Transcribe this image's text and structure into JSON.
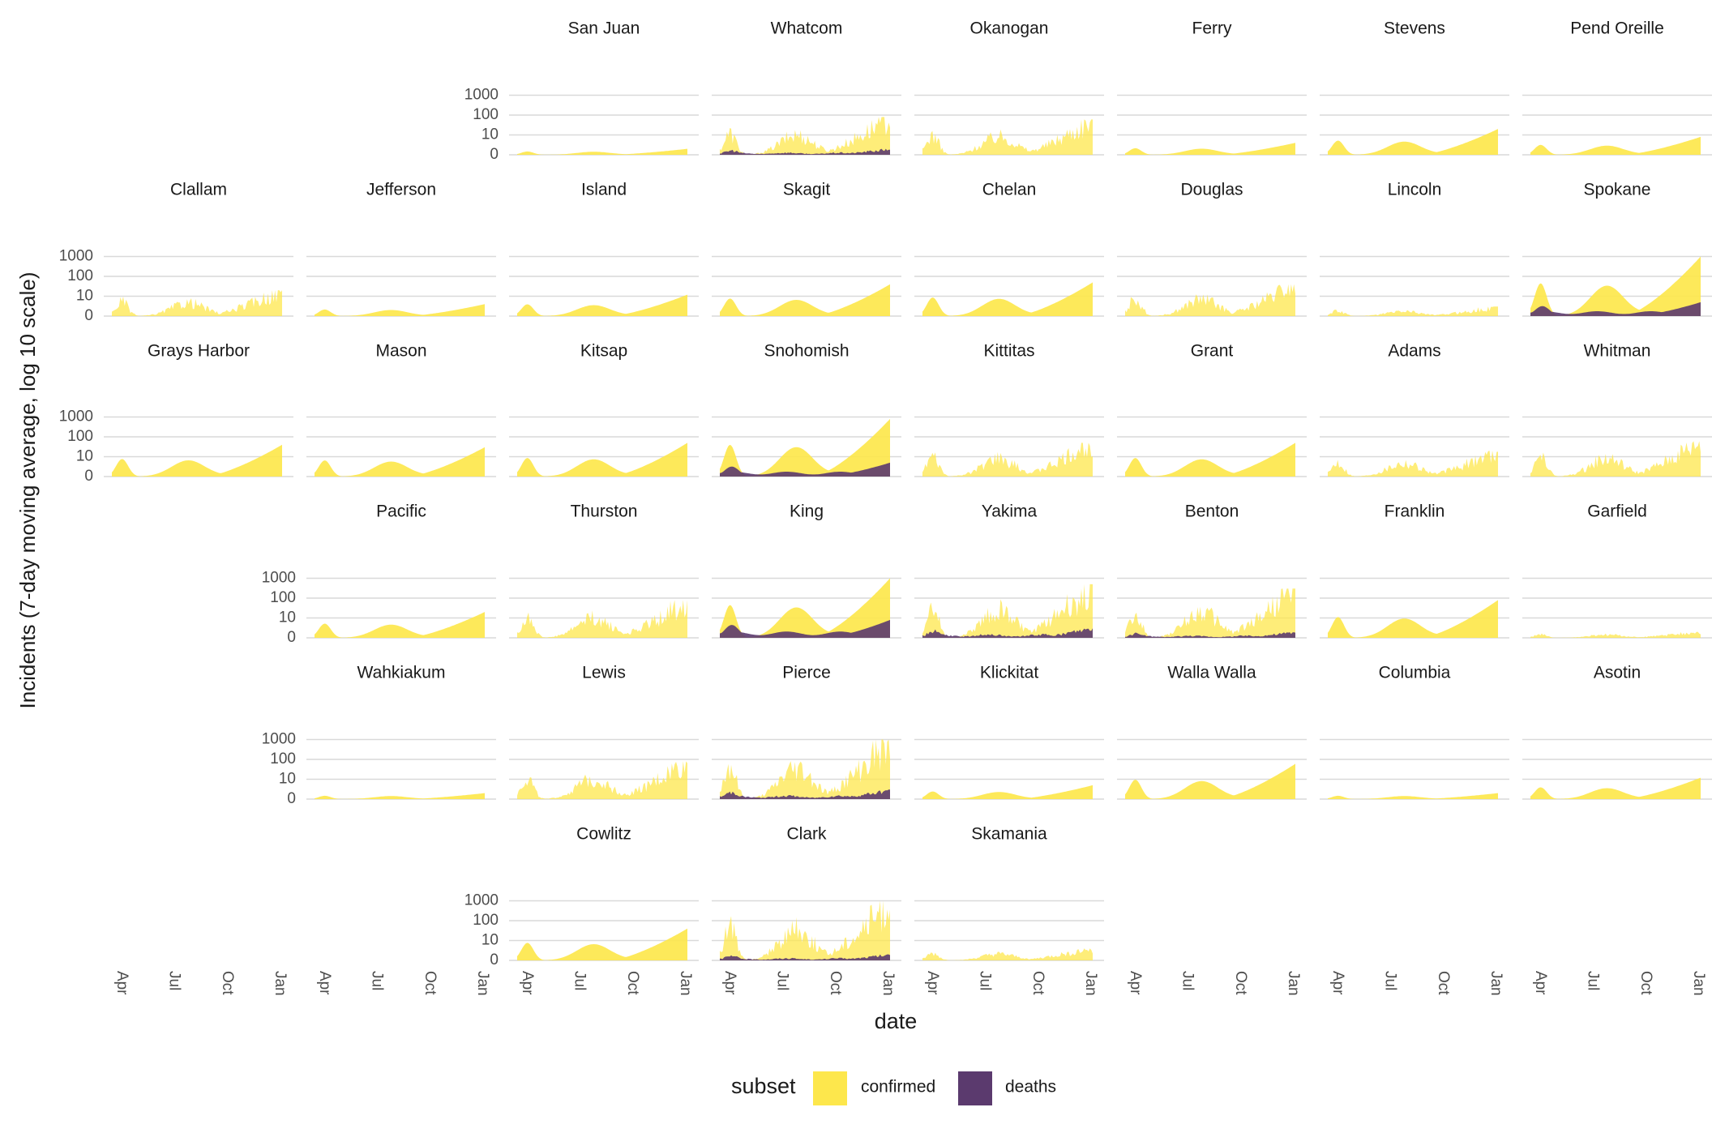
{
  "chart_data": {
    "type": "area",
    "facet_type": "small-multiples-geographic",
    "ylabel": "Incidents (7-day moving average, log 10 scale)",
    "xlabel": "date",
    "y_scale": "log10",
    "y_ticks": [
      "0",
      "10",
      "100",
      "1000"
    ],
    "x_ticks": [
      "Apr",
      "Jul",
      "Oct",
      "Jan"
    ],
    "x_range": [
      "2020-03-15",
      "2021-01-05"
    ],
    "legend": {
      "title": "subset",
      "position": "bottom",
      "entries": [
        {
          "label": "confirmed",
          "color": "#FDE74C"
        },
        {
          "label": "deaths",
          "color": "#5B3A6E"
        }
      ]
    },
    "colors": {
      "confirmed": "#FDE74C",
      "deaths": "#5B3A6E",
      "grid": "#d9d9d9"
    },
    "panels": [
      {
        "county": "San Juan",
        "row": 0,
        "col": 2,
        "confirmed_peak": 2,
        "deaths_peak": 0,
        "style": "smooth"
      },
      {
        "county": "Whatcom",
        "row": 0,
        "col": 3,
        "confirmed_peak": 80,
        "deaths_peak": 2,
        "style": "noisy"
      },
      {
        "county": "Okanogan",
        "row": 0,
        "col": 4,
        "confirmed_peak": 60,
        "deaths_peak": 1,
        "style": "noisy"
      },
      {
        "county": "Ferry",
        "row": 0,
        "col": 5,
        "confirmed_peak": 4,
        "deaths_peak": 0,
        "style": "smooth"
      },
      {
        "county": "Stevens",
        "row": 0,
        "col": 6,
        "confirmed_peak": 20,
        "deaths_peak": 1,
        "style": "smooth"
      },
      {
        "county": "Pend Oreille",
        "row": 0,
        "col": 7,
        "confirmed_peak": 8,
        "deaths_peak": 0,
        "style": "smooth"
      },
      {
        "county": "Clallam",
        "row": 1,
        "col": 0,
        "confirmed_peak": 20,
        "deaths_peak": 0,
        "style": "noisy"
      },
      {
        "county": "Jefferson",
        "row": 1,
        "col": 1,
        "confirmed_peak": 4,
        "deaths_peak": 0,
        "style": "smooth"
      },
      {
        "county": "Island",
        "row": 1,
        "col": 2,
        "confirmed_peak": 12,
        "deaths_peak": 1,
        "style": "smooth"
      },
      {
        "county": "Skagit",
        "row": 1,
        "col": 3,
        "confirmed_peak": 40,
        "deaths_peak": 1,
        "style": "smooth"
      },
      {
        "county": "Chelan",
        "row": 1,
        "col": 4,
        "confirmed_peak": 50,
        "deaths_peak": 1,
        "style": "smooth"
      },
      {
        "county": "Douglas",
        "row": 1,
        "col": 5,
        "confirmed_peak": 40,
        "deaths_peak": 0,
        "style": "noisy"
      },
      {
        "county": "Lincoln",
        "row": 1,
        "col": 6,
        "confirmed_peak": 3,
        "deaths_peak": 0,
        "style": "noisy"
      },
      {
        "county": "Spokane",
        "row": 1,
        "col": 7,
        "confirmed_peak": 1000,
        "deaths_peak": 5,
        "style": "smooth"
      },
      {
        "county": "Grays Harbor",
        "row": 2,
        "col": 0,
        "confirmed_peak": 40,
        "deaths_peak": 1,
        "style": "smooth"
      },
      {
        "county": "Mason",
        "row": 2,
        "col": 1,
        "confirmed_peak": 30,
        "deaths_peak": 0,
        "style": "smooth"
      },
      {
        "county": "Kitsap",
        "row": 2,
        "col": 2,
        "confirmed_peak": 50,
        "deaths_peak": 0,
        "style": "smooth"
      },
      {
        "county": "Snohomish",
        "row": 2,
        "col": 3,
        "confirmed_peak": 800,
        "deaths_peak": 5,
        "style": "smooth"
      },
      {
        "county": "Kittitas",
        "row": 2,
        "col": 4,
        "confirmed_peak": 50,
        "deaths_peak": 0,
        "style": "noisy"
      },
      {
        "county": "Grant",
        "row": 2,
        "col": 5,
        "confirmed_peak": 50,
        "deaths_peak": 1,
        "style": "smooth"
      },
      {
        "county": "Adams",
        "row": 2,
        "col": 6,
        "confirmed_peak": 20,
        "deaths_peak": 0,
        "style": "noisy"
      },
      {
        "county": "Whitman",
        "row": 2,
        "col": 7,
        "confirmed_peak": 60,
        "deaths_peak": 1,
        "style": "noisy"
      },
      {
        "county": "Pacific",
        "row": 3,
        "col": 1,
        "confirmed_peak": 20,
        "deaths_peak": 0,
        "style": "smooth"
      },
      {
        "county": "Thurston",
        "row": 3,
        "col": 2,
        "confirmed_peak": 80,
        "deaths_peak": 1,
        "style": "noisy"
      },
      {
        "county": "King",
        "row": 3,
        "col": 3,
        "confirmed_peak": 1000,
        "deaths_peak": 8,
        "style": "smooth"
      },
      {
        "county": "Yakima",
        "row": 3,
        "col": 4,
        "confirmed_peak": 500,
        "deaths_peak": 3,
        "style": "noisy"
      },
      {
        "county": "Benton",
        "row": 3,
        "col": 5,
        "confirmed_peak": 300,
        "deaths_peak": 2,
        "style": "noisy"
      },
      {
        "county": "Franklin",
        "row": 3,
        "col": 6,
        "confirmed_peak": 80,
        "deaths_peak": 1,
        "style": "smooth"
      },
      {
        "county": "Garfield",
        "row": 3,
        "col": 7,
        "confirmed_peak": 2,
        "deaths_peak": 0,
        "style": "noisy"
      },
      {
        "county": "Wahkiakum",
        "row": 4,
        "col": 1,
        "confirmed_peak": 2,
        "deaths_peak": 0,
        "style": "smooth"
      },
      {
        "county": "Lewis",
        "row": 4,
        "col": 2,
        "confirmed_peak": 80,
        "deaths_peak": 0,
        "style": "noisy"
      },
      {
        "county": "Pierce",
        "row": 4,
        "col": 3,
        "confirmed_peak": 1000,
        "deaths_peak": 3,
        "style": "noisy"
      },
      {
        "county": "Klickitat",
        "row": 4,
        "col": 4,
        "confirmed_peak": 5,
        "deaths_peak": 0,
        "style": "smooth"
      },
      {
        "county": "Walla Walla",
        "row": 4,
        "col": 5,
        "confirmed_peak": 60,
        "deaths_peak": 1,
        "style": "smooth"
      },
      {
        "county": "Columbia",
        "row": 4,
        "col": 6,
        "confirmed_peak": 2,
        "deaths_peak": 0,
        "style": "smooth"
      },
      {
        "county": "Asotin",
        "row": 4,
        "col": 7,
        "confirmed_peak": 12,
        "deaths_peak": 1,
        "style": "smooth"
      },
      {
        "county": "Cowlitz",
        "row": 5,
        "col": 2,
        "confirmed_peak": 40,
        "deaths_peak": 1,
        "style": "smooth"
      },
      {
        "county": "Clark",
        "row": 5,
        "col": 3,
        "confirmed_peak": 1000,
        "deaths_peak": 2,
        "style": "noisy"
      },
      {
        "county": "Skamania",
        "row": 5,
        "col": 4,
        "confirmed_peak": 4,
        "deaths_peak": 0,
        "style": "noisy"
      }
    ]
  }
}
